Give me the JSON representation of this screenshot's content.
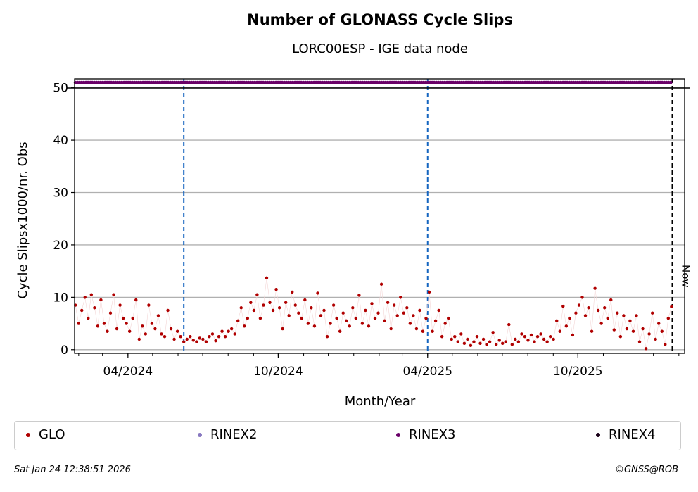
{
  "title": "Number of GLONASS Cycle Slips",
  "subtitle": "LORC00ESP - IGE data node",
  "footer": {
    "timestamp": "Sat Jan 24 12:38:51 2026",
    "credit": "©GNSS@ROB"
  },
  "chart_data": {
    "type": "scatter",
    "xlabel": "Month/Year",
    "ylabel": "Cycle Slipsx1000/nr. Obs",
    "x_range": [
      "2024-01-27",
      "2026-02-08"
    ],
    "ylim": [
      -0.7,
      51.7
    ],
    "yticks": [
      0,
      10,
      20,
      30,
      40,
      50
    ],
    "xticks": [
      {
        "date": "2024-04-01",
        "label": "04/2024"
      },
      {
        "date": "2024-10-01",
        "label": "10/2024"
      },
      {
        "date": "2025-04-01",
        "label": "04/2025"
      },
      {
        "date": "2025-10-01",
        "label": "10/2025"
      }
    ],
    "grid": "horizontal",
    "vlines": [
      {
        "date": "2024-06-08",
        "style": "dashed",
        "color": "#1565c0"
      },
      {
        "date": "2025-04-01",
        "style": "dashed",
        "color": "#1565c0"
      },
      {
        "date": "2026-01-24",
        "style": "dashed",
        "color": "#000000",
        "label": "Now"
      }
    ],
    "series": [
      {
        "name": "GLO",
        "color": "#b00000",
        "start": "2024-01-28",
        "end": "2026-01-23",
        "values": [
          8.5,
          5,
          7.5,
          10,
          6,
          10.5,
          8,
          4.5,
          9.5,
          5,
          3.5,
          7,
          10.5,
          4,
          8.5,
          6,
          5,
          3.5,
          6,
          9.5,
          2,
          4.5,
          3,
          8.5,
          5,
          4,
          6.5,
          3,
          2.5,
          7.5,
          4,
          2,
          3.5,
          2.5,
          1.5,
          2,
          2.5,
          1.8,
          1.5,
          2.2,
          2,
          1.5,
          2.5,
          3,
          1.7,
          2.5,
          3.5,
          2.5,
          3.5,
          4,
          3,
          5.5,
          8,
          4.5,
          6,
          9,
          7.5,
          10.5,
          6,
          8.5,
          13.7,
          9,
          7.5,
          11.5,
          8,
          4,
          9,
          6.5,
          11,
          8.5,
          7,
          6,
          9.5,
          5,
          8,
          4.5,
          10.8,
          6.5,
          7.5,
          2.5,
          5,
          8.5,
          6,
          3.5,
          7,
          5.5,
          4.5,
          8,
          6,
          10.4,
          5,
          7.5,
          4.5,
          8.8,
          6,
          7,
          12.5,
          5.5,
          9,
          4,
          8.5,
          6.5,
          10,
          7,
          8,
          5,
          6.5,
          4,
          7.5,
          3.5,
          6,
          11,
          3.5,
          5.5,
          7.5,
          2.5,
          5,
          6,
          2,
          2.5,
          1.5,
          3,
          1.2,
          2,
          0.8,
          1.5,
          2.5,
          1.2,
          2,
          1,
          1.5,
          3.3,
          1,
          1.8,
          1.2,
          1.5,
          4.8,
          1,
          2,
          1.5,
          3,
          2.5,
          1.8,
          2.8,
          1.5,
          2.5,
          3,
          2,
          1.5,
          2.5,
          2,
          5.5,
          3.5,
          8.3,
          4.5,
          6,
          2.8,
          7,
          8.5,
          10,
          6.5,
          8,
          3.5,
          11.7,
          7.5,
          5,
          8,
          6,
          9.5,
          3.8,
          7,
          2.5,
          6.5,
          4,
          5.5,
          3.5,
          6.5,
          1.5,
          4,
          0.2,
          3,
          7,
          2,
          5,
          3.5,
          1,
          6,
          8.2
        ]
      },
      {
        "name": "RINEX2",
        "color": "#8878c0",
        "values": []
      },
      {
        "name": "RINEX3",
        "color": "#6a0068",
        "start": "2024-01-28",
        "end": "2026-01-23",
        "constant": 51
      },
      {
        "name": "RINEX4",
        "color": "#1a0018",
        "values": []
      }
    ]
  }
}
